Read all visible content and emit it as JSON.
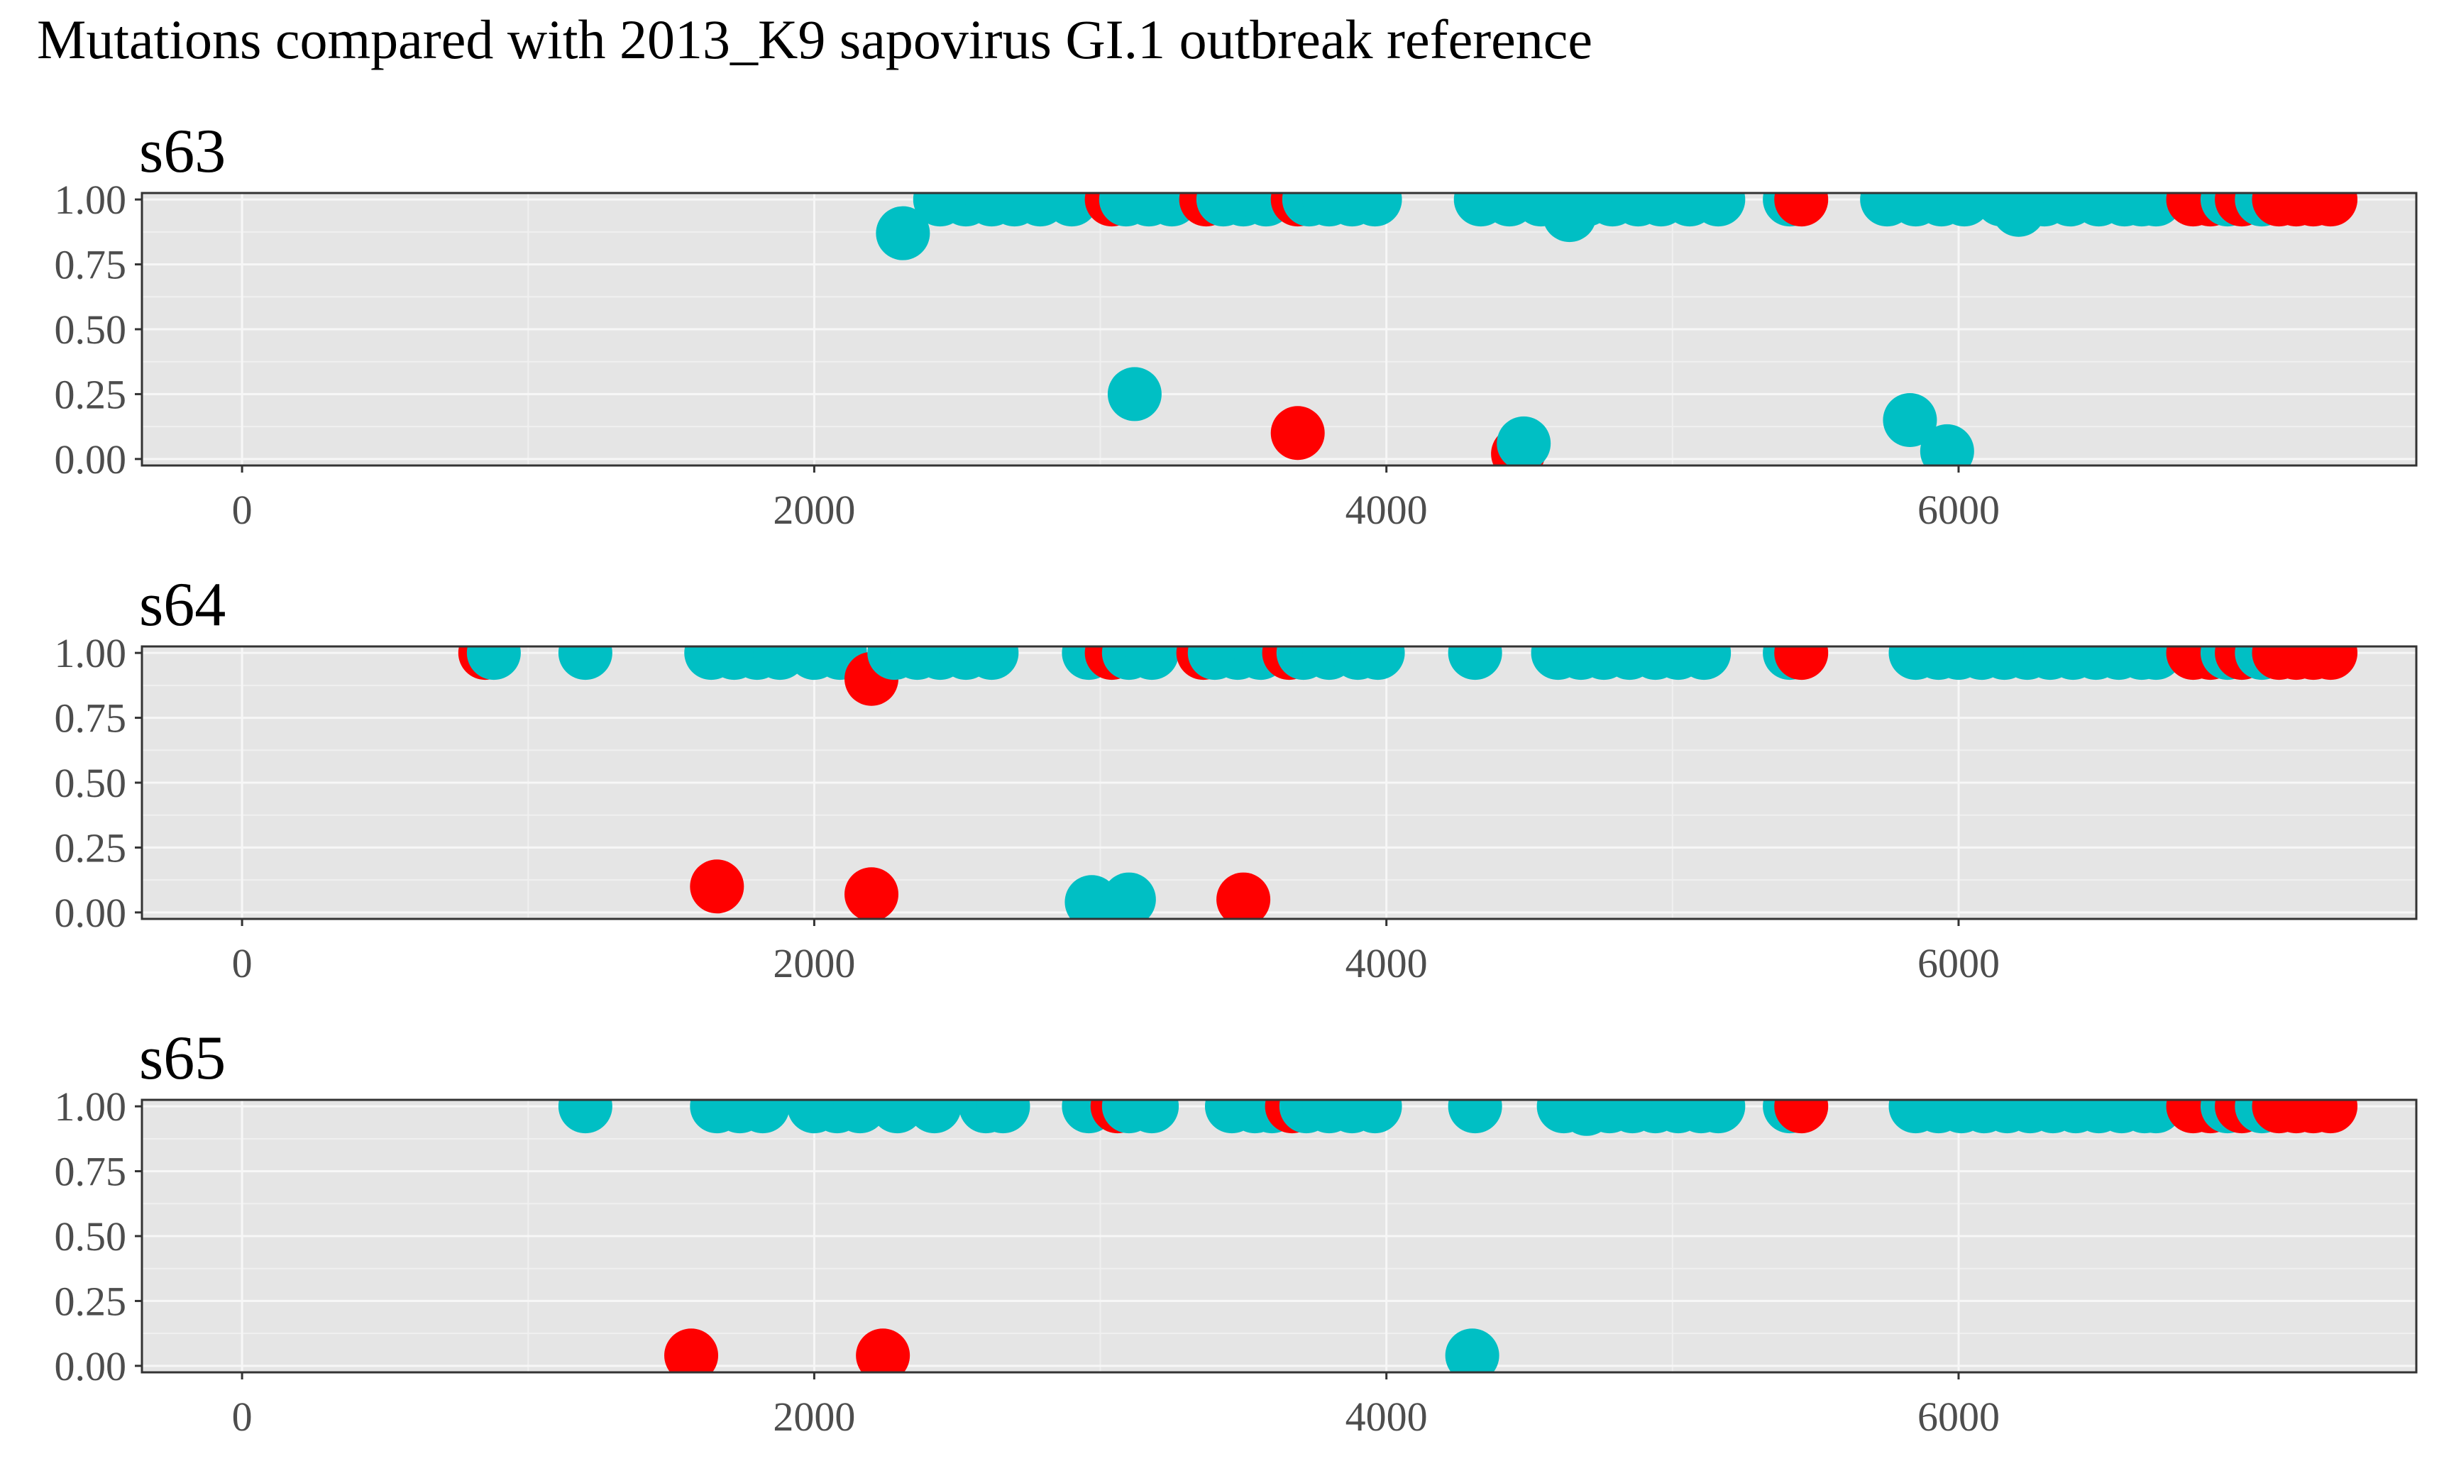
{
  "chart_data": {
    "type": "scatter",
    "title": "Mutations compared with 2013_K9 sapovirus GI.1 outbreak reference",
    "xlabel": "",
    "ylabel": "",
    "xlim": [
      -350,
      7600
    ],
    "ylim": [
      0,
      1.05
    ],
    "x_ticks": [
      "0",
      "2000",
      "4000",
      "6000"
    ],
    "y_ticks": [
      "0.00",
      "0.25",
      "0.50",
      "0.75",
      "1.00"
    ],
    "grid": true,
    "legend": "none",
    "colors": {
      "teal": "#00BFC4",
      "red": "#FF0000"
    },
    "panels": [
      {
        "title": "s63",
        "points": [
          [
            2310,
            0.87,
            "teal"
          ],
          [
            2440,
            1.0,
            "teal"
          ],
          [
            2530,
            1.0,
            "teal"
          ],
          [
            2620,
            1.0,
            "teal"
          ],
          [
            2700,
            1.0,
            "teal"
          ],
          [
            2790,
            1.0,
            "teal"
          ],
          [
            2900,
            1.0,
            "teal"
          ],
          [
            3040,
            1.0,
            "red"
          ],
          [
            3090,
            1.0,
            "teal"
          ],
          [
            3170,
            1.0,
            "teal"
          ],
          [
            3250,
            1.0,
            "teal"
          ],
          [
            3370,
            1.0,
            "red"
          ],
          [
            3430,
            1.0,
            "teal"
          ],
          [
            3500,
            1.0,
            "teal"
          ],
          [
            3580,
            1.0,
            "teal"
          ],
          [
            3690,
            1.0,
            "red"
          ],
          [
            3730,
            1.0,
            "teal"
          ],
          [
            3800,
            1.0,
            "teal"
          ],
          [
            3880,
            1.0,
            "teal"
          ],
          [
            3960,
            1.0,
            "teal"
          ],
          [
            4330,
            1.0,
            "teal"
          ],
          [
            4430,
            1.0,
            "teal"
          ],
          [
            4540,
            1.0,
            "teal"
          ],
          [
            4640,
            0.94,
            "teal"
          ],
          [
            4700,
            1.0,
            "teal"
          ],
          [
            4790,
            1.0,
            "teal"
          ],
          [
            4880,
            1.0,
            "teal"
          ],
          [
            4960,
            1.0,
            "teal"
          ],
          [
            5060,
            1.0,
            "teal"
          ],
          [
            5160,
            1.0,
            "teal"
          ],
          [
            5410,
            1.0,
            "teal"
          ],
          [
            5450,
            1.0,
            "red"
          ],
          [
            5750,
            1.0,
            "teal"
          ],
          [
            5850,
            1.0,
            "teal"
          ],
          [
            5940,
            1.0,
            "teal"
          ],
          [
            6020,
            1.0,
            "teal"
          ],
          [
            6150,
            1.0,
            "teal"
          ],
          [
            6210,
            0.96,
            "teal"
          ],
          [
            6300,
            1.0,
            "teal"
          ],
          [
            6390,
            1.0,
            "teal"
          ],
          [
            6490,
            1.0,
            "teal"
          ],
          [
            6580,
            1.0,
            "teal"
          ],
          [
            6640,
            1.0,
            "teal"
          ],
          [
            6690,
            1.0,
            "teal"
          ],
          [
            6820,
            1.0,
            "red"
          ],
          [
            6880,
            1.0,
            "red"
          ],
          [
            6940,
            1.0,
            "teal"
          ],
          [
            6990,
            1.0,
            "red"
          ],
          [
            7060,
            1.0,
            "teal"
          ],
          [
            7120,
            1.0,
            "red"
          ],
          [
            7180,
            1.0,
            "red"
          ],
          [
            7240,
            1.0,
            "red"
          ],
          [
            7300,
            1.0,
            "red"
          ],
          [
            3120,
            0.25,
            "teal"
          ],
          [
            3690,
            0.1,
            "red"
          ],
          [
            4460,
            0.02,
            "red"
          ],
          [
            4480,
            0.06,
            "teal"
          ],
          [
            5830,
            0.15,
            "teal"
          ],
          [
            5960,
            0.03,
            "teal"
          ]
        ]
      },
      {
        "title": "s64",
        "points": [
          [
            850,
            1.0,
            "red"
          ],
          [
            880,
            1.0,
            "teal"
          ],
          [
            1200,
            1.0,
            "teal"
          ],
          [
            1640,
            1.0,
            "teal"
          ],
          [
            1720,
            1.0,
            "teal"
          ],
          [
            1800,
            1.0,
            "teal"
          ],
          [
            1880,
            1.0,
            "teal"
          ],
          [
            2000,
            1.0,
            "teal"
          ],
          [
            2090,
            1.0,
            "teal"
          ],
          [
            2200,
            0.9,
            "red"
          ],
          [
            2280,
            1.0,
            "teal"
          ],
          [
            2360,
            1.0,
            "teal"
          ],
          [
            2440,
            1.0,
            "teal"
          ],
          [
            2530,
            1.0,
            "teal"
          ],
          [
            2620,
            1.0,
            "teal"
          ],
          [
            2960,
            1.0,
            "teal"
          ],
          [
            3040,
            1.0,
            "red"
          ],
          [
            3100,
            1.0,
            "teal"
          ],
          [
            3180,
            1.0,
            "teal"
          ],
          [
            3360,
            1.0,
            "red"
          ],
          [
            3400,
            1.0,
            "teal"
          ],
          [
            3480,
            1.0,
            "teal"
          ],
          [
            3560,
            1.0,
            "teal"
          ],
          [
            3660,
            1.0,
            "red"
          ],
          [
            3710,
            1.0,
            "teal"
          ],
          [
            3800,
            1.0,
            "teal"
          ],
          [
            3900,
            1.0,
            "teal"
          ],
          [
            3970,
            1.0,
            "teal"
          ],
          [
            4310,
            1.0,
            "teal"
          ],
          [
            4600,
            1.0,
            "teal"
          ],
          [
            4680,
            1.0,
            "teal"
          ],
          [
            4760,
            1.0,
            "teal"
          ],
          [
            4850,
            1.0,
            "teal"
          ],
          [
            4940,
            1.0,
            "teal"
          ],
          [
            5020,
            1.0,
            "teal"
          ],
          [
            5110,
            1.0,
            "teal"
          ],
          [
            5410,
            1.0,
            "teal"
          ],
          [
            5450,
            1.0,
            "red"
          ],
          [
            5850,
            1.0,
            "teal"
          ],
          [
            5930,
            1.0,
            "teal"
          ],
          [
            6000,
            1.0,
            "teal"
          ],
          [
            6080,
            1.0,
            "teal"
          ],
          [
            6160,
            1.0,
            "teal"
          ],
          [
            6240,
            1.0,
            "teal"
          ],
          [
            6320,
            1.0,
            "teal"
          ],
          [
            6400,
            1.0,
            "teal"
          ],
          [
            6480,
            1.0,
            "teal"
          ],
          [
            6560,
            1.0,
            "teal"
          ],
          [
            6640,
            1.0,
            "teal"
          ],
          [
            6690,
            1.0,
            "teal"
          ],
          [
            6820,
            1.0,
            "red"
          ],
          [
            6880,
            1.0,
            "red"
          ],
          [
            6940,
            1.0,
            "teal"
          ],
          [
            6990,
            1.0,
            "red"
          ],
          [
            7060,
            1.0,
            "teal"
          ],
          [
            7120,
            1.0,
            "red"
          ],
          [
            7180,
            1.0,
            "red"
          ],
          [
            7240,
            1.0,
            "red"
          ],
          [
            7300,
            1.0,
            "red"
          ],
          [
            1660,
            0.1,
            "red"
          ],
          [
            2200,
            0.07,
            "red"
          ],
          [
            2970,
            0.04,
            "teal"
          ],
          [
            3100,
            0.05,
            "teal"
          ],
          [
            3500,
            0.05,
            "red"
          ]
        ]
      },
      {
        "title": "s65",
        "points": [
          [
            1200,
            1.0,
            "teal"
          ],
          [
            1660,
            1.0,
            "teal"
          ],
          [
            1740,
            1.0,
            "teal"
          ],
          [
            1820,
            1.0,
            "teal"
          ],
          [
            2000,
            1.0,
            "teal"
          ],
          [
            2080,
            1.0,
            "teal"
          ],
          [
            2160,
            1.0,
            "teal"
          ],
          [
            2290,
            1.0,
            "teal"
          ],
          [
            2420,
            1.0,
            "teal"
          ],
          [
            2600,
            1.0,
            "teal"
          ],
          [
            2660,
            1.0,
            "teal"
          ],
          [
            2960,
            1.0,
            "teal"
          ],
          [
            3060,
            1.0,
            "red"
          ],
          [
            3100,
            1.0,
            "teal"
          ],
          [
            3180,
            1.0,
            "teal"
          ],
          [
            3460,
            1.0,
            "teal"
          ],
          [
            3540,
            1.0,
            "teal"
          ],
          [
            3600,
            1.0,
            "teal"
          ],
          [
            3670,
            1.0,
            "red"
          ],
          [
            3720,
            1.0,
            "teal"
          ],
          [
            3800,
            1.0,
            "teal"
          ],
          [
            3880,
            1.0,
            "teal"
          ],
          [
            3960,
            1.0,
            "teal"
          ],
          [
            4310,
            1.0,
            "teal"
          ],
          [
            4620,
            1.0,
            "teal"
          ],
          [
            4700,
            0.99,
            "teal"
          ],
          [
            4780,
            1.0,
            "teal"
          ],
          [
            4860,
            1.0,
            "teal"
          ],
          [
            4940,
            1.0,
            "teal"
          ],
          [
            5020,
            1.0,
            "teal"
          ],
          [
            5100,
            1.0,
            "teal"
          ],
          [
            5160,
            1.0,
            "teal"
          ],
          [
            5410,
            1.0,
            "teal"
          ],
          [
            5450,
            1.0,
            "red"
          ],
          [
            5850,
            1.0,
            "teal"
          ],
          [
            5930,
            1.0,
            "teal"
          ],
          [
            6010,
            1.0,
            "teal"
          ],
          [
            6090,
            1.0,
            "teal"
          ],
          [
            6170,
            1.0,
            "teal"
          ],
          [
            6250,
            1.0,
            "teal"
          ],
          [
            6330,
            1.0,
            "teal"
          ],
          [
            6410,
            1.0,
            "teal"
          ],
          [
            6490,
            1.0,
            "teal"
          ],
          [
            6570,
            1.0,
            "teal"
          ],
          [
            6650,
            1.0,
            "teal"
          ],
          [
            6690,
            1.0,
            "teal"
          ],
          [
            6820,
            1.0,
            "red"
          ],
          [
            6880,
            1.0,
            "red"
          ],
          [
            6940,
            1.0,
            "teal"
          ],
          [
            6990,
            1.0,
            "red"
          ],
          [
            7060,
            1.0,
            "teal"
          ],
          [
            7120,
            1.0,
            "red"
          ],
          [
            7180,
            1.0,
            "red"
          ],
          [
            7240,
            1.0,
            "red"
          ],
          [
            7300,
            1.0,
            "red"
          ],
          [
            1570,
            0.04,
            "red"
          ],
          [
            2240,
            0.04,
            "red"
          ],
          [
            4300,
            0.04,
            "teal"
          ]
        ]
      }
    ]
  }
}
